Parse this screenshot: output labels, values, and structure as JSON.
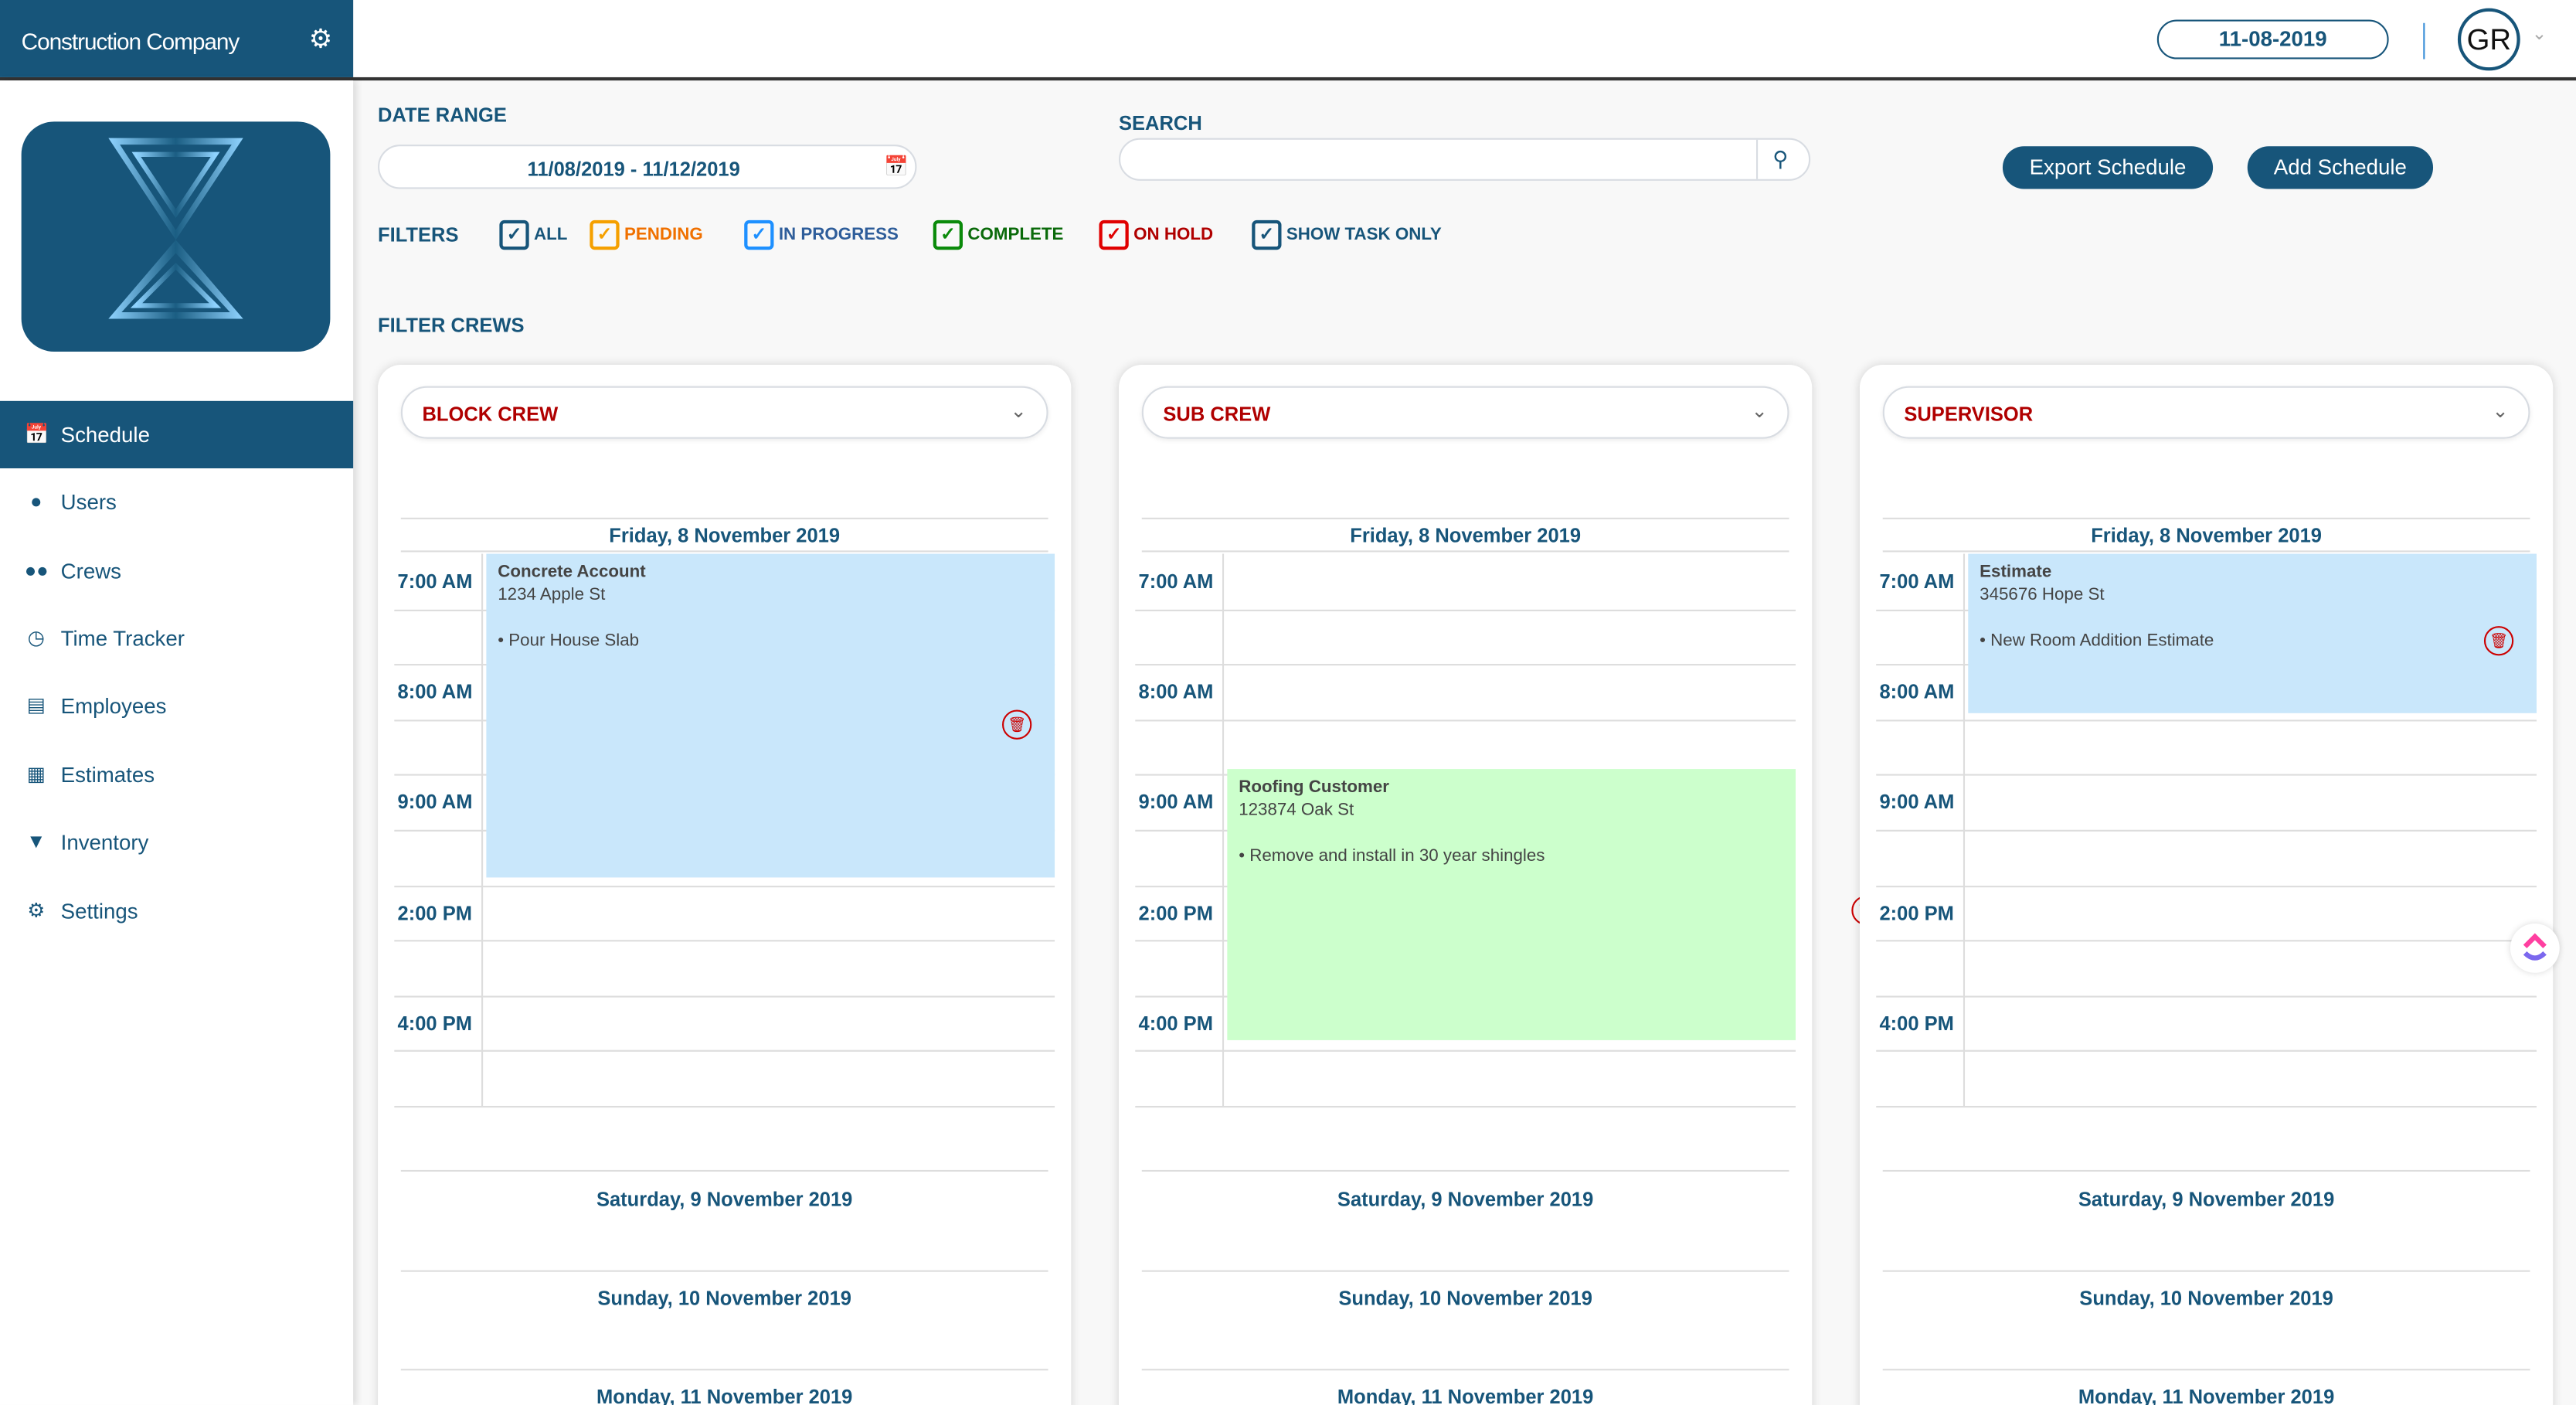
{
  "brand": {
    "name": "Construction Company",
    "gear_icon": "gear-icon"
  },
  "header": {
    "current_date": "11-08-2019",
    "avatar_initials": "GR"
  },
  "sidebar": {
    "items": [
      {
        "label": "Schedule",
        "icon": "calendar-icon",
        "active": true
      },
      {
        "label": "Users",
        "icon": "user-icon"
      },
      {
        "label": "Crews",
        "icon": "users-icon"
      },
      {
        "label": "Time Tracker",
        "icon": "clock-icon"
      },
      {
        "label": "Employees",
        "icon": "id-card-icon"
      },
      {
        "label": "Estimates",
        "icon": "grid-icon"
      },
      {
        "label": "Inventory",
        "icon": "basket-icon"
      },
      {
        "label": "Settings",
        "icon": "gear-icon"
      }
    ]
  },
  "toolbar": {
    "date_range_label": "DATE RANGE",
    "date_range_value": "11/08/2019 - 11/12/2019",
    "search_label": "SEARCH",
    "search_value": "",
    "export_label": "Export Schedule",
    "add_label": "Add Schedule"
  },
  "filters": {
    "label": "FILTERS",
    "items": [
      {
        "label": "ALL",
        "color": "#17557a",
        "checked": true
      },
      {
        "label": "PENDING",
        "color": "#f5a000",
        "text_color": "#f07000",
        "checked": true
      },
      {
        "label": "IN PROGRESS",
        "color": "#1e90ff",
        "text_color": "#2e5d9a",
        "checked": true
      },
      {
        "label": "COMPLETE",
        "color": "#0a8a0a",
        "text_color": "#0a6a0a",
        "checked": true
      },
      {
        "label": "ON HOLD",
        "color": "#e00000",
        "text_color": "#b00000",
        "checked": true
      },
      {
        "label": "SHOW TASK ONLY",
        "color": "#17557a",
        "checked": true
      }
    ]
  },
  "filter_crews_label": "FILTER CREWS",
  "times": [
    "7:00 AM",
    "8:00 AM",
    "9:00 AM",
    "2:00 PM",
    "4:00 PM"
  ],
  "days": [
    "Friday, 8 November 2019",
    "Saturday, 9 November 2019",
    "Sunday, 10 November 2019",
    "Monday, 11 November 2019"
  ],
  "columns": [
    {
      "crew": "BLOCK CREW",
      "event": {
        "name": "Concrete Account",
        "address": "1234 Apple St",
        "task": "• Pour House Slab",
        "color": "#c9e7fb"
      }
    },
    {
      "crew": "SUB CREW",
      "event": {
        "name": "Roofing Customer",
        "address": "123874 Oak St",
        "task": "• Remove and install in 30 year shingles",
        "color": "#ccffcc"
      }
    },
    {
      "crew": "SUPERVISOR",
      "event": {
        "name": "Estimate",
        "address": "345676 Hope St",
        "task": "• New Room Addition Estimate",
        "color": "#c9e7fb"
      }
    }
  ]
}
